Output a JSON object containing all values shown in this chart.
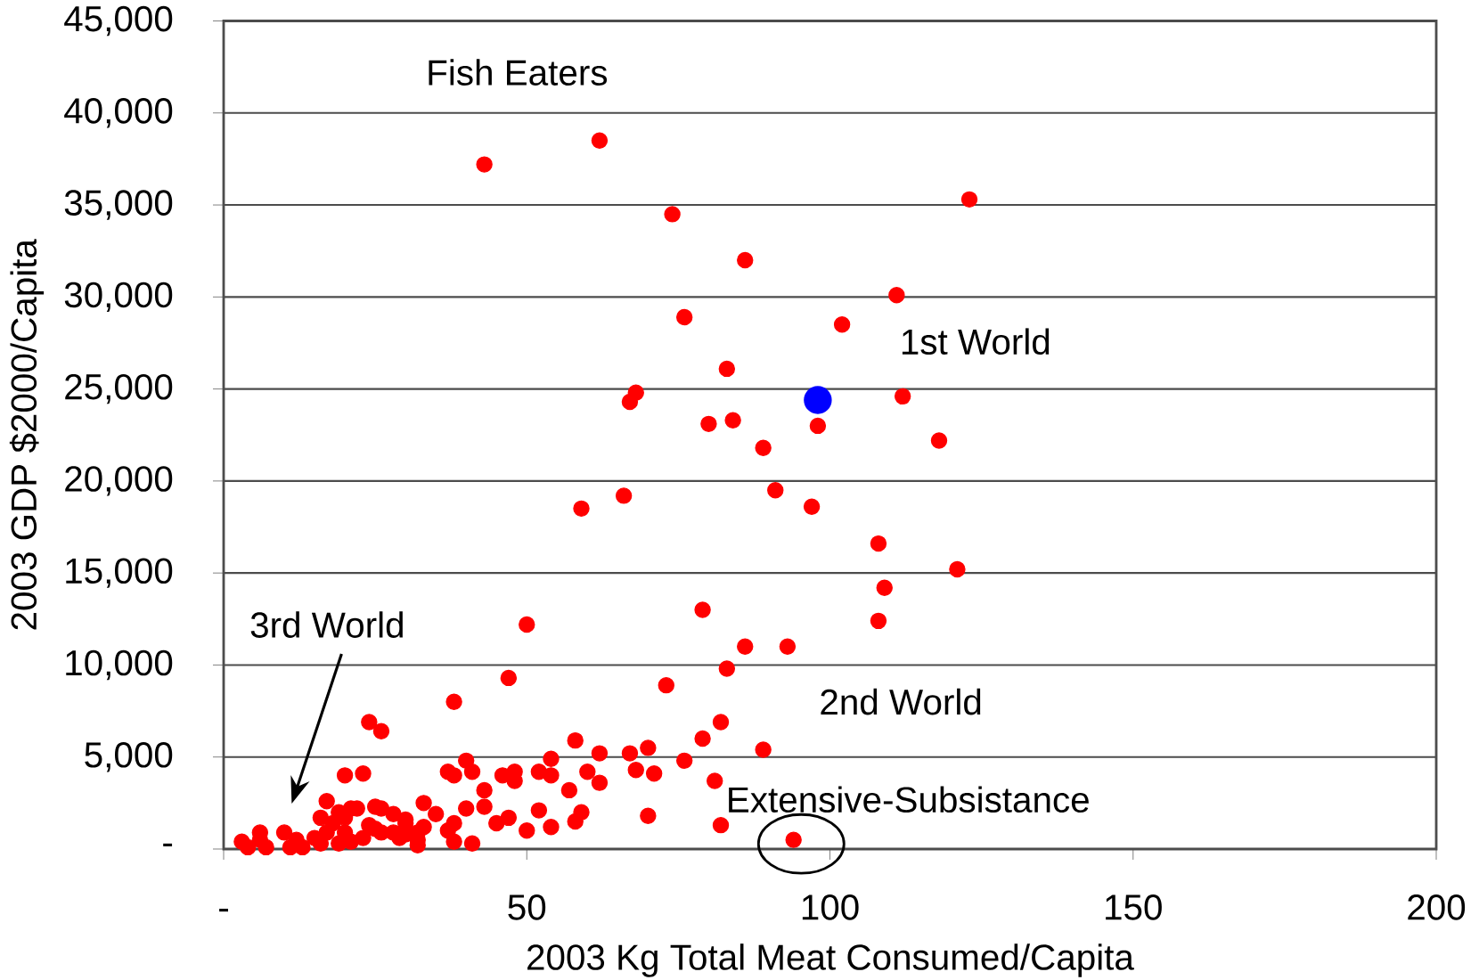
{
  "chart_data": {
    "type": "scatter",
    "xlabel": "2003 Kg Total Meat Consumed/Capita",
    "ylabel": "2003 GDP $2000/Capita",
    "xlim": [
      0,
      200
    ],
    "xticks": [
      {
        "value": 0,
        "label": "-"
      },
      50,
      100,
      150,
      200
    ],
    "ylim": [
      0,
      45000
    ],
    "yticks": [
      {
        "value": 0,
        "label": "-"
      },
      {
        "value": 5000,
        "label": "5,000"
      },
      {
        "value": 10000,
        "label": "10,000"
      },
      {
        "value": 15000,
        "label": "15,000"
      },
      {
        "value": 20000,
        "label": "20,000"
      },
      {
        "value": 25000,
        "label": "25,000"
      },
      {
        "value": 30000,
        "label": "30,000"
      },
      {
        "value": 35000,
        "label": "35,000"
      },
      {
        "value": 40000,
        "label": "40,000"
      },
      {
        "value": 45000,
        "label": "45,000"
      }
    ],
    "grid": "y",
    "series": [
      {
        "color": "#ff0000",
        "x": [
          43,
          62,
          74,
          123,
          86,
          111,
          76,
          102,
          83,
          68,
          67,
          112,
          80,
          84,
          98,
          118,
          89,
          91,
          66,
          59,
          97,
          108,
          121,
          109,
          108,
          50,
          79,
          86,
          93,
          73,
          83,
          47,
          38,
          82,
          79,
          89,
          58,
          62,
          67,
          70,
          76,
          54,
          48,
          46,
          48,
          52,
          54,
          60,
          62,
          57,
          68,
          71,
          81,
          43,
          43,
          45,
          47,
          50,
          52,
          54,
          58,
          59,
          70,
          82,
          94,
          24,
          26,
          20,
          23,
          40,
          37,
          38,
          41,
          40,
          41,
          38,
          38,
          37,
          33,
          35,
          33,
          32,
          30,
          28,
          30,
          28,
          17,
          16,
          19,
          21,
          22,
          25,
          26,
          30,
          24,
          26,
          32,
          20,
          18,
          17,
          3,
          4,
          6,
          6,
          7,
          10,
          11,
          12,
          13,
          15,
          16,
          19,
          21,
          20,
          23,
          25,
          29,
          32
        ],
        "values": [
          37200,
          38500,
          34500,
          35300,
          32000,
          30100,
          28900,
          28500,
          26100,
          24800,
          24300,
          24600,
          23100,
          23300,
          23000,
          22200,
          21800,
          19500,
          19200,
          18500,
          18600,
          16600,
          15200,
          14200,
          12400,
          12200,
          13000,
          11000,
          11000,
          8900,
          9800,
          9300,
          8000,
          6900,
          6000,
          5400,
          5900,
          5200,
          5200,
          5500,
          4800,
          4900,
          4200,
          4000,
          3700,
          4200,
          4000,
          4200,
          3600,
          3200,
          4300,
          4100,
          3700,
          3200,
          2300,
          1400,
          1700,
          1000,
          2100,
          1200,
          1500,
          2000,
          1800,
          1300,
          500,
          6900,
          6400,
          4000,
          4100,
          4800,
          4200,
          4000,
          4200,
          2200,
          300,
          1400,
          400,
          1000,
          2500,
          1900,
          1200,
          200,
          1400,
          1900,
          800,
          900,
          2600,
          1700,
          2000,
          2200,
          2200,
          2300,
          2200,
          1600,
          1300,
          900,
          900,
          1700,
          1400,
          900,
          400,
          100,
          900,
          500,
          100,
          900,
          100,
          500,
          100,
          600,
          300,
          300,
          400,
          900,
          600,
          1100,
          600,
          500
        ]
      },
      {
        "color": "#0000ff",
        "x": [
          98
        ],
        "values": [
          24400
        ]
      }
    ],
    "annotations": [
      "Fish Eaters",
      "1st World",
      "3rd World",
      "2nd World",
      "Extensive-Subsistance"
    ]
  }
}
